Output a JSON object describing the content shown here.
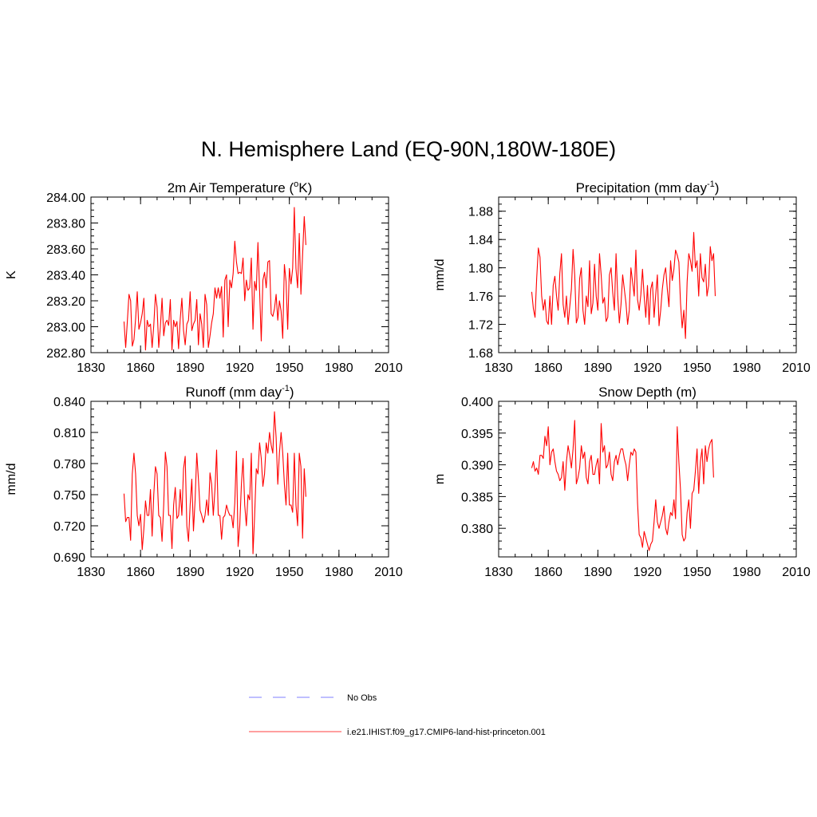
{
  "figure_title": "N. Hemisphere Land (EQ-90N,180W-180E)",
  "legend": [
    {
      "label": "No Obs",
      "color": "#9999ff",
      "dash": true
    },
    {
      "label": "i.e21.IHIST.f09_g17.CMIP6-land-hist-princeton.001",
      "color": "#ff6666",
      "dash": false
    }
  ],
  "chart_data": [
    {
      "type": "line",
      "title_main": "2m Air Temperature (",
      "title_sup": "o",
      "title_tail": "K)",
      "ylabel": "K",
      "xlim": [
        1830,
        2010
      ],
      "ylim": [
        282.8,
        284.0
      ],
      "xticks": [
        1830,
        1860,
        1890,
        1920,
        1950,
        1980,
        2010
      ],
      "yticks": [
        282.8,
        283.0,
        283.2,
        283.4,
        283.6,
        283.8,
        284.0
      ],
      "ytick_decimals": 2,
      "series": [
        {
          "color": "#ff0000",
          "start_year": 1850,
          "values": [
            283.04,
            282.84,
            283.04,
            283.25,
            283.2,
            282.85,
            282.9,
            283.06,
            283.27,
            282.98,
            283.03,
            283.1,
            283.22,
            282.82,
            283.05,
            283.0,
            283.02,
            282.84,
            283.01,
            283.25,
            283.15,
            282.84,
            283.0,
            283.22,
            282.93,
            283.03,
            283.05,
            283.01,
            283.21,
            282.82,
            283.05,
            283.0,
            283.04,
            282.83,
            283.06,
            283.22,
            282.97,
            282.86,
            283.02,
            283.05,
            283.27,
            282.97,
            283.02,
            283.05,
            283.21,
            282.86,
            283.1,
            283.02,
            282.84,
            283.25,
            283.17,
            282.84,
            282.93,
            283.03,
            283.1,
            283.3,
            283.22,
            283.3,
            283.22,
            283.31,
            282.92,
            283.36,
            283.4,
            283.0,
            283.36,
            283.3,
            283.41,
            283.66,
            283.5,
            283.41,
            283.42,
            283.41,
            283.53,
            283.2,
            283.36,
            283.28,
            283.3,
            283.53,
            282.98,
            283.35,
            283.28,
            283.65,
            283.28,
            282.89,
            283.36,
            283.42,
            283.3,
            283.5,
            283.51,
            283.1,
            283.08,
            283.14,
            283.25,
            283.05,
            283.2,
            283.12,
            282.91,
            283.48,
            283.35,
            282.98,
            283.45,
            283.33,
            283.45,
            283.92,
            283.45,
            283.3,
            283.72,
            283.25,
            283.55,
            283.85,
            283.63
          ]
        }
      ]
    },
    {
      "type": "line",
      "title_main": "Precipitation (mm day",
      "title_sup": "-1",
      "title_tail": ")",
      "ylabel": "mm/d",
      "xlim": [
        1830,
        2010
      ],
      "ylim": [
        1.68,
        1.9
      ],
      "xticks": [
        1830,
        1860,
        1890,
        1920,
        1950,
        1980,
        2010
      ],
      "yticks": [
        1.68,
        1.72,
        1.76,
        1.8,
        1.84,
        1.88
      ],
      "ytick_decimals": 2,
      "series": [
        {
          "color": "#ff0000",
          "start_year": 1850,
          "values": [
            1.766,
            1.742,
            1.73,
            1.785,
            1.828,
            1.815,
            1.76,
            1.74,
            1.755,
            1.725,
            1.72,
            1.76,
            1.72,
            1.775,
            1.788,
            1.76,
            1.74,
            1.792,
            1.82,
            1.748,
            1.73,
            1.76,
            1.72,
            1.745,
            1.77,
            1.826,
            1.79,
            1.722,
            1.73,
            1.785,
            1.8,
            1.74,
            1.72,
            1.76,
            1.745,
            1.81,
            1.735,
            1.75,
            1.805,
            1.76,
            1.74,
            1.82,
            1.79,
            1.75,
            1.758,
            1.724,
            1.73,
            1.79,
            1.8,
            1.765,
            1.74,
            1.82,
            1.76,
            1.722,
            1.748,
            1.79,
            1.77,
            1.75,
            1.72,
            1.74,
            1.8,
            1.78,
            1.76,
            1.825,
            1.755,
            1.74,
            1.762,
            1.798,
            1.76,
            1.73,
            1.775,
            1.72,
            1.77,
            1.78,
            1.73,
            1.762,
            1.79,
            1.718,
            1.74,
            1.77,
            1.79,
            1.8,
            1.77,
            1.745,
            1.81,
            1.782,
            1.798,
            1.825,
            1.818,
            1.808,
            1.75,
            1.715,
            1.74,
            1.7,
            1.78,
            1.82,
            1.81,
            1.795,
            1.85,
            1.8,
            1.81,
            1.76,
            1.82,
            1.786,
            1.78,
            1.805,
            1.76,
            1.775,
            1.83,
            1.81,
            1.82,
            1.76
          ]
        }
      ]
    },
    {
      "type": "line",
      "title_main": "Runoff (mm day",
      "title_sup": "-1",
      "title_tail": ")",
      "ylabel": "mm/d",
      "xlim": [
        1830,
        2010
      ],
      "ylim": [
        0.69,
        0.84
      ],
      "xticks": [
        1830,
        1860,
        1890,
        1920,
        1950,
        1980,
        2010
      ],
      "yticks": [
        0.69,
        0.72,
        0.75,
        0.78,
        0.81,
        0.84
      ],
      "ytick_decimals": 3,
      "series": [
        {
          "color": "#ff0000",
          "start_year": 1850,
          "values": [
            0.751,
            0.724,
            0.728,
            0.728,
            0.706,
            0.77,
            0.79,
            0.77,
            0.73,
            0.72,
            0.731,
            0.697,
            0.717,
            0.744,
            0.73,
            0.73,
            0.755,
            0.71,
            0.75,
            0.777,
            0.77,
            0.73,
            0.728,
            0.705,
            0.74,
            0.791,
            0.777,
            0.73,
            0.73,
            0.698,
            0.74,
            0.757,
            0.727,
            0.73,
            0.755,
            0.73,
            0.775,
            0.787,
            0.72,
            0.705,
            0.74,
            0.765,
            0.715,
            0.745,
            0.79,
            0.765,
            0.735,
            0.73,
            0.723,
            0.73,
            0.745,
            0.73,
            0.771,
            0.76,
            0.73,
            0.755,
            0.793,
            0.73,
            0.73,
            0.707,
            0.728,
            0.73,
            0.74,
            0.734,
            0.73,
            0.73,
            0.718,
            0.742,
            0.792,
            0.7,
            0.72,
            0.76,
            0.785,
            0.74,
            0.72,
            0.75,
            0.745,
            0.79,
            0.693,
            0.73,
            0.775,
            0.77,
            0.8,
            0.785,
            0.758,
            0.77,
            0.8,
            0.79,
            0.81,
            0.798,
            0.79,
            0.83,
            0.805,
            0.76,
            0.79,
            0.81,
            0.79,
            0.76,
            0.74,
            0.79,
            0.74,
            0.74,
            0.733,
            0.79,
            0.74,
            0.72,
            0.79,
            0.777,
            0.708,
            0.775,
            0.748
          ]
        }
      ]
    },
    {
      "type": "line",
      "title_main": "Snow Depth (m)",
      "title_sup": "",
      "title_tail": "",
      "ylabel": "m",
      "xlim": [
        1830,
        2010
      ],
      "ylim": [
        0.3755,
        0.4
      ],
      "xticks": [
        1830,
        1860,
        1890,
        1920,
        1950,
        1980,
        2010
      ],
      "yticks": [
        0.38,
        0.385,
        0.39,
        0.395,
        0.4
      ],
      "ytick_decimals": 3,
      "series": [
        {
          "color": "#ff0000",
          "start_year": 1850,
          "values": [
            0.3895,
            0.3905,
            0.389,
            0.3895,
            0.3885,
            0.3915,
            0.3915,
            0.391,
            0.3945,
            0.393,
            0.396,
            0.39,
            0.392,
            0.3925,
            0.3905,
            0.389,
            0.3885,
            0.3875,
            0.388,
            0.3905,
            0.386,
            0.3905,
            0.393,
            0.3915,
            0.3895,
            0.3925,
            0.397,
            0.387,
            0.388,
            0.3895,
            0.393,
            0.391,
            0.392,
            0.388,
            0.387,
            0.3905,
            0.3915,
            0.3885,
            0.3885,
            0.39,
            0.391,
            0.387,
            0.3965,
            0.392,
            0.393,
            0.3895,
            0.39,
            0.392,
            0.3885,
            0.3875,
            0.3905,
            0.3915,
            0.39,
            0.3915,
            0.3925,
            0.3925,
            0.391,
            0.39,
            0.3875,
            0.39,
            0.392,
            0.3915,
            0.3925,
            0.392,
            0.384,
            0.379,
            0.3785,
            0.377,
            0.3795,
            0.3785,
            0.3775,
            0.3765,
            0.3775,
            0.378,
            0.381,
            0.3845,
            0.381,
            0.38,
            0.381,
            0.382,
            0.3835,
            0.38,
            0.379,
            0.381,
            0.3825,
            0.382,
            0.3845,
            0.3815,
            0.396,
            0.3905,
            0.386,
            0.379,
            0.378,
            0.3785,
            0.3825,
            0.3845,
            0.38,
            0.3855,
            0.386,
            0.389,
            0.3925,
            0.3855,
            0.3905,
            0.3925,
            0.387,
            0.393,
            0.3905,
            0.3925,
            0.3935,
            0.394,
            0.388
          ]
        }
      ]
    }
  ]
}
